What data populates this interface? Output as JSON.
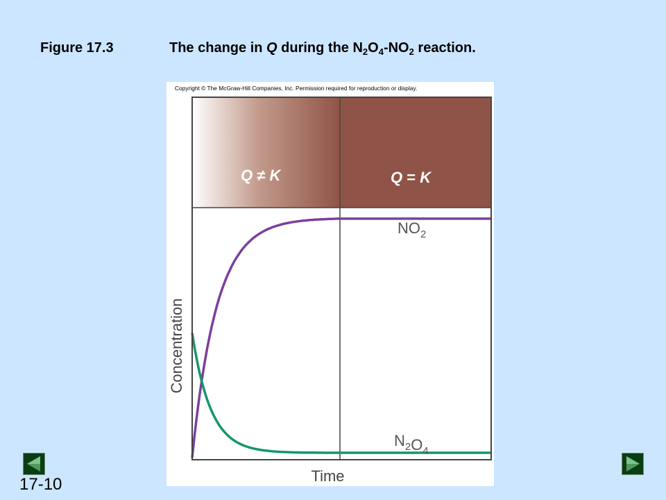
{
  "slide": {
    "title_prefix": "Figure 17.3",
    "title_parts": [
      {
        "text": "The change in "
      },
      {
        "text": "Q",
        "italic": true
      },
      {
        "text": " during the N"
      },
      {
        "text": "2",
        "sub": true
      },
      {
        "text": "O"
      },
      {
        "text": "4",
        "sub": true
      },
      {
        "text": "-NO"
      },
      {
        "text": "2",
        "sub": true
      },
      {
        "text": " reaction."
      }
    ],
    "slide_number": "17-10"
  },
  "figure": {
    "copyright": "Copyright © The McGraw-Hill Companies, Inc. Permission required for reproduction or display."
  },
  "chart_data": {
    "type": "line",
    "xlabel": "Time",
    "ylabel": "Concentration",
    "regions": [
      {
        "label": "Q ≠ K",
        "label_parts": [
          {
            "text": "Q",
            "italic": true
          },
          {
            "text": " ≠ "
          },
          {
            "text": "K",
            "italic": true
          }
        ]
      },
      {
        "label": "Q = K",
        "label_parts": [
          {
            "text": "Q",
            "italic": true
          },
          {
            "text": " = "
          },
          {
            "text": "K",
            "italic": true
          }
        ]
      }
    ],
    "series": [
      {
        "name": "NO2",
        "label_parts": [
          {
            "text": "NO"
          },
          {
            "text": "2",
            "sub": true
          }
        ],
        "color": "#7b3f9e",
        "start": 0.0,
        "end": 1.0,
        "rate": 6.0
      },
      {
        "name": "N2O4",
        "label_parts": [
          {
            "text": "N"
          },
          {
            "text": "2",
            "sub": true
          },
          {
            "text": "O"
          },
          {
            "text": "4",
            "sub": true
          }
        ],
        "color": "#15956b",
        "start": 0.52,
        "end": 0.02,
        "rate": 8.0
      }
    ]
  },
  "colors": {
    "background": "#cce6ff",
    "region_dark": "#8f5447",
    "nav_button": "#0b3d14"
  },
  "icons": {
    "prev": "triangle-left-icon",
    "next": "triangle-right-icon"
  }
}
